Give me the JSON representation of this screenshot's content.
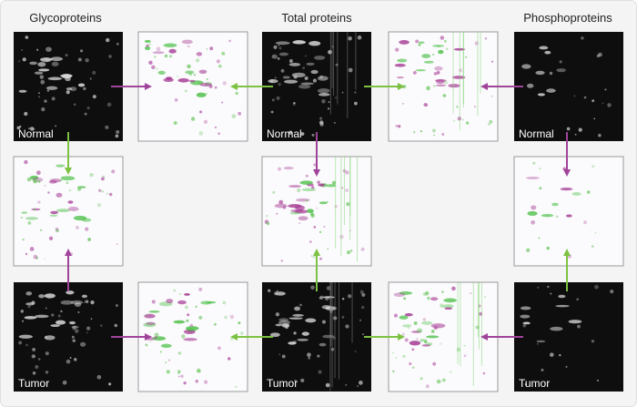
{
  "column_titles": [
    "Glycoproteins",
    "Total proteins",
    "Phosphoproteins"
  ],
  "normal_labels": [
    "Normal",
    "Normal",
    "Normal"
  ],
  "tumor_labels": [
    "Tumor",
    "Tumor",
    "Tumor"
  ]
}
